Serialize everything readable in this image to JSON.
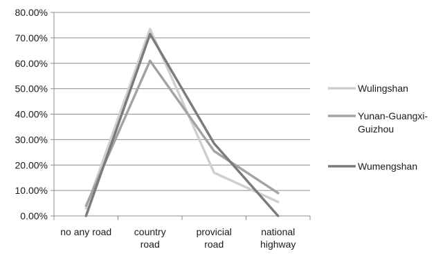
{
  "chart_data": {
    "type": "line",
    "title": "",
    "xlabel": "",
    "ylabel": "",
    "categories": [
      [
        "no any road"
      ],
      [
        "country",
        "road"
      ],
      [
        "provicial",
        "road"
      ],
      [
        "national",
        "highway"
      ]
    ],
    "ylim": [
      0,
      0.8
    ],
    "yticks": [
      0,
      0.1,
      0.2,
      0.3,
      0.4,
      0.5,
      0.6,
      0.7,
      0.8
    ],
    "ytick_labels": [
      "0.00%",
      "10.00%",
      "20.00%",
      "30.00%",
      "40.00%",
      "50.00%",
      "60.00%",
      "70.00%",
      "80.00%"
    ],
    "grid": true,
    "legend_position": "right",
    "series": [
      {
        "name": "Wulingshan",
        "name_lines": [
          "Wulingshan"
        ],
        "color": "#cfcfcf",
        "values": [
          0.03,
          0.735,
          0.17,
          0.055
        ]
      },
      {
        "name": "Yunan-Guangxi-Guizhou",
        "name_lines": [
          "Yunan-Guangxi-",
          "Guizhou"
        ],
        "color": "#a3a3a3",
        "values": [
          0.04,
          0.61,
          0.255,
          0.09
        ]
      },
      {
        "name": "Wumengshan",
        "name_lines": [
          "Wumengshan"
        ],
        "color": "#7b7b7b",
        "values": [
          0.0,
          0.715,
          0.285,
          0.0
        ]
      }
    ]
  }
}
